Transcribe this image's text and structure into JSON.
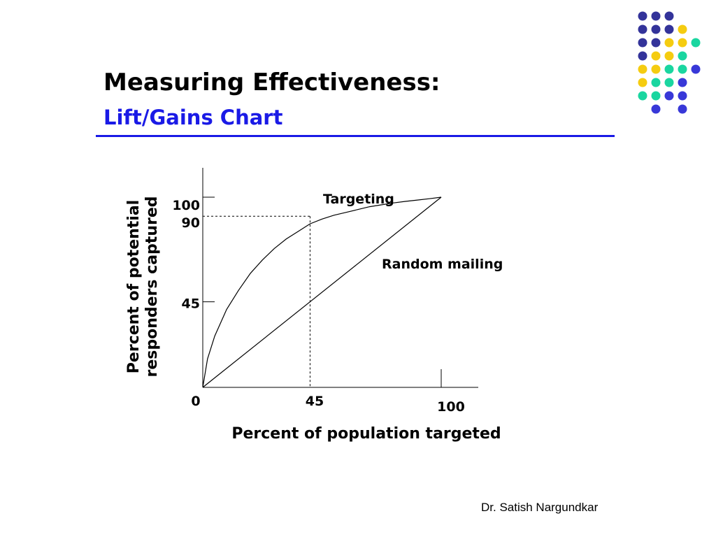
{
  "slide": {
    "title": "Measuring Effectiveness:",
    "subtitle": "Lift/Gains Chart",
    "footer": "Dr. Satish Nargundkar",
    "accent_color": "#1a1ae6",
    "decoration_colors": {
      "navy": "#33339a",
      "yellow": "#f5cc10",
      "teal": "#1ad6a0",
      "blue": "#3838d8"
    },
    "decoration_grid": [
      [
        "navy",
        "navy",
        "navy",
        "",
        ""
      ],
      [
        "navy",
        "navy",
        "navy",
        "yellow",
        ""
      ],
      [
        "navy",
        "navy",
        "yellow",
        "yellow",
        "teal"
      ],
      [
        "navy",
        "yellow",
        "yellow",
        "teal",
        ""
      ],
      [
        "yellow",
        "yellow",
        "teal",
        "teal",
        "blue"
      ],
      [
        "yellow",
        "teal",
        "teal",
        "blue",
        ""
      ],
      [
        "teal",
        "teal",
        "blue",
        "blue",
        ""
      ],
      [
        "",
        "blue",
        "",
        "blue",
        ""
      ]
    ]
  },
  "chart_data": {
    "type": "line",
    "xlabel": "Percent of population targeted",
    "ylabel_lines": [
      "Percent of potential",
      "responders captured"
    ],
    "x_ticks": [
      {
        "value": 0,
        "label": "0"
      },
      {
        "value": 45,
        "label": "45"
      },
      {
        "value": 100,
        "label": "100"
      }
    ],
    "y_ticks": [
      {
        "value": 45,
        "label": "45"
      },
      {
        "value": 90,
        "label": "90"
      },
      {
        "value": 100,
        "label": "100"
      }
    ],
    "xlim": [
      0,
      115
    ],
    "ylim": [
      0,
      115
    ],
    "series": [
      {
        "name": "Targeting",
        "x": [
          0,
          2,
          5,
          10,
          15,
          20,
          25,
          30,
          35,
          40,
          45,
          50,
          55,
          60,
          65,
          70,
          75,
          80,
          85,
          90,
          95,
          100
        ],
        "y": [
          0,
          15,
          27,
          41,
          51,
          60,
          67,
          73,
          78,
          82,
          86,
          88.5,
          90.5,
          92,
          93.5,
          95,
          96,
          97,
          97.8,
          98.5,
          99.2,
          100
        ]
      },
      {
        "name": "Random mailing",
        "x": [
          0,
          100
        ],
        "y": [
          0,
          100
        ]
      }
    ],
    "reference": {
      "x": 45,
      "y": 90
    },
    "grid": false,
    "legend": "inline labels"
  }
}
